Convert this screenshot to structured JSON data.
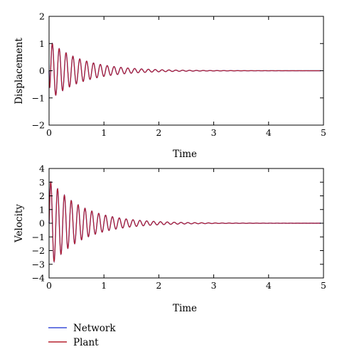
{
  "chart_data": [
    {
      "type": "line",
      "xlabel": "Time",
      "ylabel": "Displacement",
      "xlim": [
        0,
        5
      ],
      "ylim": [
        -2,
        2
      ],
      "xticks": [
        0,
        1,
        2,
        3,
        4,
        5
      ],
      "yticks": [
        -2,
        -1,
        0,
        1,
        2
      ],
      "xtick_labels": [
        "0",
        "1",
        "2",
        "3",
        "4",
        "5"
      ],
      "ytick_labels": [
        "−2",
        "−1",
        "0",
        "1",
        "2"
      ],
      "grid": false,
      "signal": {
        "peak_amplitude": 1.0,
        "peak_time": 0.06,
        "oscillation_period": 0.125,
        "settle_time": 2.4,
        "final_value": 0,
        "x_end": 4.95
      },
      "series": [
        {
          "name": "Network",
          "color": "#3a4fd8"
        },
        {
          "name": "Plant",
          "color": "#b5202e"
        }
      ]
    },
    {
      "type": "line",
      "xlabel": "Time",
      "ylabel": "Velocity",
      "xlim": [
        0,
        5
      ],
      "ylim": [
        -4,
        4
      ],
      "xticks": [
        0,
        1,
        2,
        3,
        4,
        5
      ],
      "yticks": [
        -4,
        -3,
        -2,
        -1,
        0,
        1,
        2,
        3,
        4
      ],
      "xtick_labels": [
        "0",
        "1",
        "2",
        "3",
        "4",
        "5"
      ],
      "ytick_labels": [
        "−4",
        "−3",
        "−2",
        "−1",
        "0",
        "1",
        "2",
        "3",
        "4"
      ],
      "grid": false,
      "signal": {
        "peak_amplitude": 3.1,
        "peak_time": 0.03,
        "oscillation_period": 0.125,
        "settle_time": 2.4,
        "final_value": 0,
        "x_end": 4.95
      },
      "series": [
        {
          "name": "Network",
          "color": "#3a4fd8"
        },
        {
          "name": "Plant",
          "color": "#b5202e"
        }
      ]
    }
  ],
  "legend": {
    "placement": "bottom-left",
    "items": [
      {
        "label": "Network",
        "color": "#3a4fd8"
      },
      {
        "label": "Plant",
        "color": "#b5202e"
      }
    ]
  }
}
